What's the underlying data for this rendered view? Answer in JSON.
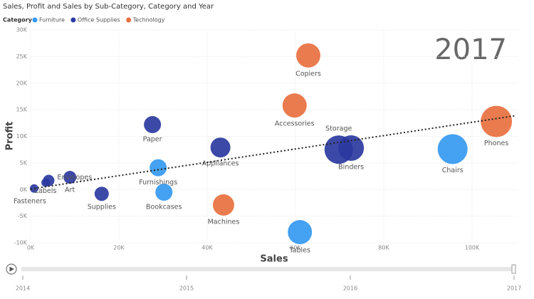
{
  "chart_data": {
    "type": "scatter",
    "title": "Sales, Profit and Sales by Sub-Category, Category and Year",
    "legend_title": "Category",
    "x_label": "Sales",
    "y_label": "Profit",
    "xlim": [
      0,
      110000
    ],
    "xticks": [
      {
        "value": 0,
        "label": "0K"
      },
      {
        "value": 20000,
        "label": "20K"
      },
      {
        "value": 40000,
        "label": "40K"
      },
      {
        "value": 60000,
        "label": "60K"
      },
      {
        "value": 80000,
        "label": "80K"
      },
      {
        "value": 100000,
        "label": "100K"
      }
    ],
    "ylim": [
      -10000,
      30000
    ],
    "yticks": [
      {
        "value": -10000,
        "label": "-10K"
      },
      {
        "value": -5000,
        "label": "-5K"
      },
      {
        "value": 0,
        "label": "0K"
      },
      {
        "value": 5000,
        "label": "5K"
      },
      {
        "value": 10000,
        "label": "10K"
      },
      {
        "value": 15000,
        "label": "15K"
      },
      {
        "value": 20000,
        "label": "20K"
      },
      {
        "value": 25000,
        "label": "25K"
      },
      {
        "value": 30000,
        "label": "30K"
      }
    ],
    "grid": true,
    "series": [
      {
        "name": "Furniture",
        "color": "#3599f0",
        "labels": [
          "Chairs",
          "Tables",
          "Furnishings",
          "Bookcases"
        ],
        "x": [
          95600,
          61000,
          28900,
          30200
        ],
        "values": [
          7600,
          -8000,
          4100,
          -500
        ],
        "sizes": [
          21,
          17,
          12,
          12
        ]
      },
      {
        "name": "Office Supplies",
        "color": "#2b3a9f",
        "labels": [
          "Storage",
          "Binders",
          "Appliances",
          "Paper",
          "Supplies",
          "Art",
          "Envelopes",
          "Labels",
          "Fasteners"
        ],
        "x": [
          69800,
          72600,
          43000,
          27600,
          16100,
          8900,
          4100,
          3400,
          800
        ],
        "values": [
          7500,
          7800,
          7900,
          12200,
          -800,
          2300,
          1700,
          1300,
          200
        ],
        "sizes": [
          20,
          18,
          14,
          12,
          10,
          9,
          8,
          6,
          6
        ]
      },
      {
        "name": "Technology",
        "color": "#e8703f",
        "labels": [
          "Phones",
          "Copiers",
          "Accessories",
          "Machines"
        ],
        "x": [
          105500,
          62900,
          59800,
          43700
        ],
        "values": [
          12800,
          25200,
          15800,
          -2900
        ],
        "sizes": [
          22,
          17,
          17,
          15
        ]
      }
    ],
    "trend": {
      "color": "#222222",
      "x": [
        0,
        110000
      ],
      "values": [
        100,
        13900
      ]
    },
    "play_axis": {
      "current": 2017,
      "ticks": [
        2014,
        2015,
        2016,
        2017
      ]
    }
  }
}
